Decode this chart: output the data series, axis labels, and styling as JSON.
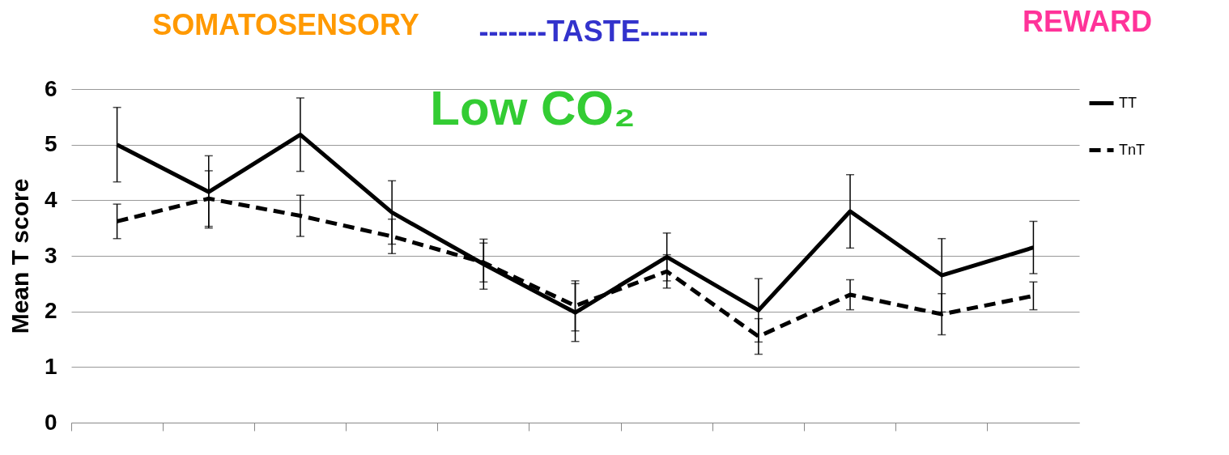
{
  "chart_data": {
    "type": "line",
    "ylabel": "Mean T score",
    "annotations": [
      "SOMATOSENSORY",
      "-------TASTE-------",
      "REWARD",
      "Low CO₂"
    ],
    "categories": [
      null,
      null,
      null,
      null,
      null,
      null,
      null,
      null,
      null,
      null,
      null
    ],
    "series": [
      {
        "name": "TT",
        "color": "#000000",
        "line_style": "solid",
        "values": [
          5.0,
          4.15,
          5.18,
          3.78,
          2.85,
          1.98,
          2.98,
          2.02,
          3.8,
          2.65,
          3.15
        ],
        "errors": [
          0.67,
          0.65,
          0.66,
          0.57,
          0.45,
          0.52,
          0.43,
          0.57,
          0.66,
          0.66,
          0.47
        ]
      },
      {
        "name": "TnT",
        "color": "#000000",
        "line_style": "dashed",
        "values": [
          3.62,
          4.03,
          3.72,
          3.35,
          2.88,
          2.1,
          2.72,
          1.55,
          2.3,
          1.95,
          2.28
        ],
        "errors": [
          0.31,
          0.5,
          0.37,
          0.31,
          0.35,
          0.45,
          0.3,
          0.32,
          0.27,
          0.37,
          0.25
        ]
      }
    ],
    "ylim": [
      0,
      6
    ],
    "yticks": [
      0,
      1,
      2,
      3,
      4,
      5,
      6
    ],
    "grid": "y",
    "legend": "right",
    "marker": "none"
  }
}
